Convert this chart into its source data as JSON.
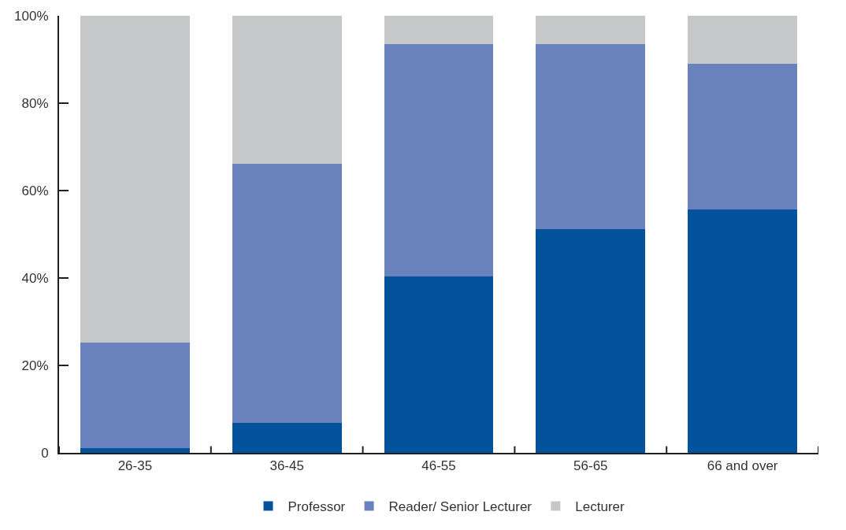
{
  "chart_data": {
    "type": "bar",
    "stacked": true,
    "categories": [
      "26-35",
      "36-45",
      "46-55",
      "56-65",
      "66 and over"
    ],
    "series": [
      {
        "name": "Professor",
        "color": "#02529c",
        "values": [
          1.1,
          6.9,
          40.4,
          51.1,
          55.6
        ]
      },
      {
        "name": "Reader/ Senior Lecturer",
        "color": "#6981bd",
        "values": [
          24.2,
          59.3,
          53.1,
          42.4,
          33.4
        ]
      },
      {
        "name": "Lecturer",
        "color": "#c6c7c9",
        "values": [
          74.7,
          33.8,
          6.5,
          6.5,
          11.0
        ]
      }
    ],
    "ylim": [
      0,
      100
    ],
    "yticks": [
      {
        "value": 0,
        "label": "0"
      },
      {
        "value": 20,
        "label": "20%"
      },
      {
        "value": 40,
        "label": "40%"
      },
      {
        "value": 60,
        "label": "60%"
      },
      {
        "value": 80,
        "label": "80%"
      },
      {
        "value": 100,
        "label": "100%"
      }
    ],
    "legend": "bottom"
  }
}
